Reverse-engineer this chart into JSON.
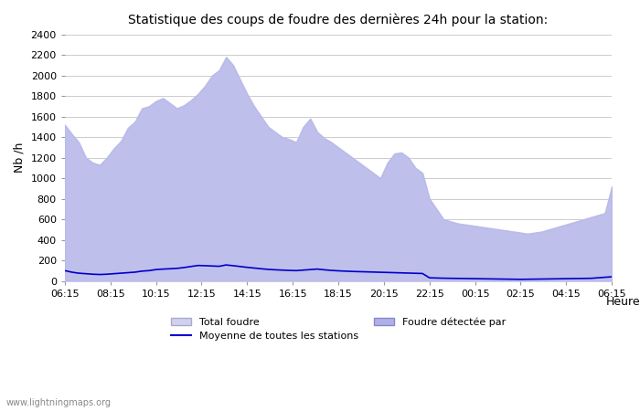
{
  "title": "Statistique des coups de foudre des dernières 24h pour la station:",
  "xlabel": "Heure",
  "ylabel": "Nb /h",
  "xlabels": [
    "06:15",
    "08:15",
    "10:15",
    "12:15",
    "14:15",
    "16:15",
    "18:15",
    "20:15",
    "22:15",
    "00:15",
    "02:15",
    "04:15",
    "06:15"
  ],
  "ylim": [
    0,
    2400
  ],
  "yticks": [
    0,
    200,
    400,
    600,
    800,
    1000,
    1200,
    1400,
    1600,
    1800,
    2000,
    2200,
    2400
  ],
  "bg_color": "#ffffff",
  "plot_bg_color": "#ffffff",
  "grid_color": "#cccccc",
  "fill_color_total": "#d0d0f0",
  "fill_color_detected": "#b0b0e8",
  "line_color": "#0000cc",
  "watermark": "www.lightningmaps.org",
  "legend_total": "Total foudre",
  "legend_detected": "Foudre détectée par",
  "legend_moyenne": "Moyenne de toutes les stations",
  "total_foudre": [
    1520,
    1430,
    1350,
    1200,
    1150,
    1130,
    1200,
    1290,
    1360,
    1490,
    1550,
    1680,
    1700,
    1750,
    1780,
    1730,
    1680,
    1710,
    1760,
    1820,
    1900,
    2000,
    2050,
    2180,
    2100,
    1960,
    1820,
    1700,
    1600,
    1500,
    1450,
    1400,
    1380,
    1350,
    1500,
    1580,
    1450,
    1390,
    1350,
    1300,
    1250,
    1200,
    1150,
    1100,
    1050,
    1000,
    1150,
    1240,
    1250,
    1200,
    1100,
    1050,
    800,
    700,
    600,
    580,
    560,
    550,
    540,
    530,
    520,
    510,
    500,
    490,
    480,
    470,
    460,
    470,
    480,
    500,
    520,
    540,
    560,
    580,
    600,
    620,
    640,
    660,
    920
  ],
  "detected_foudre": [
    1520,
    1430,
    1350,
    1200,
    1150,
    1130,
    1200,
    1290,
    1360,
    1490,
    1550,
    1680,
    1700,
    1750,
    1780,
    1730,
    1680,
    1710,
    1760,
    1820,
    1900,
    2000,
    2050,
    2180,
    2100,
    1960,
    1820,
    1700,
    1600,
    1500,
    1450,
    1400,
    1380,
    1350,
    1500,
    1580,
    1450,
    1390,
    1350,
    1300,
    1250,
    1200,
    1150,
    1100,
    1050,
    1000,
    1150,
    1240,
    1250,
    1200,
    1100,
    1050,
    800,
    700,
    600,
    580,
    560,
    550,
    540,
    530,
    520,
    510,
    500,
    490,
    480,
    470,
    460,
    470,
    480,
    500,
    520,
    540,
    560,
    580,
    600,
    620,
    640,
    660,
    920
  ],
  "moyenne": [
    100,
    85,
    75,
    70,
    65,
    62,
    65,
    70,
    75,
    80,
    85,
    95,
    100,
    110,
    115,
    118,
    122,
    130,
    140,
    150,
    148,
    145,
    142,
    155,
    148,
    140,
    132,
    125,
    118,
    112,
    108,
    105,
    102,
    100,
    105,
    110,
    115,
    108,
    102,
    98,
    95,
    92,
    90,
    88,
    86,
    84,
    82,
    80,
    78,
    76,
    74,
    72,
    30,
    28,
    26,
    25,
    24,
    23,
    22,
    21,
    20,
    19,
    18,
    17,
    16,
    15,
    16,
    17,
    18,
    19,
    20,
    21,
    22,
    23,
    24,
    25,
    30,
    35,
    40
  ]
}
